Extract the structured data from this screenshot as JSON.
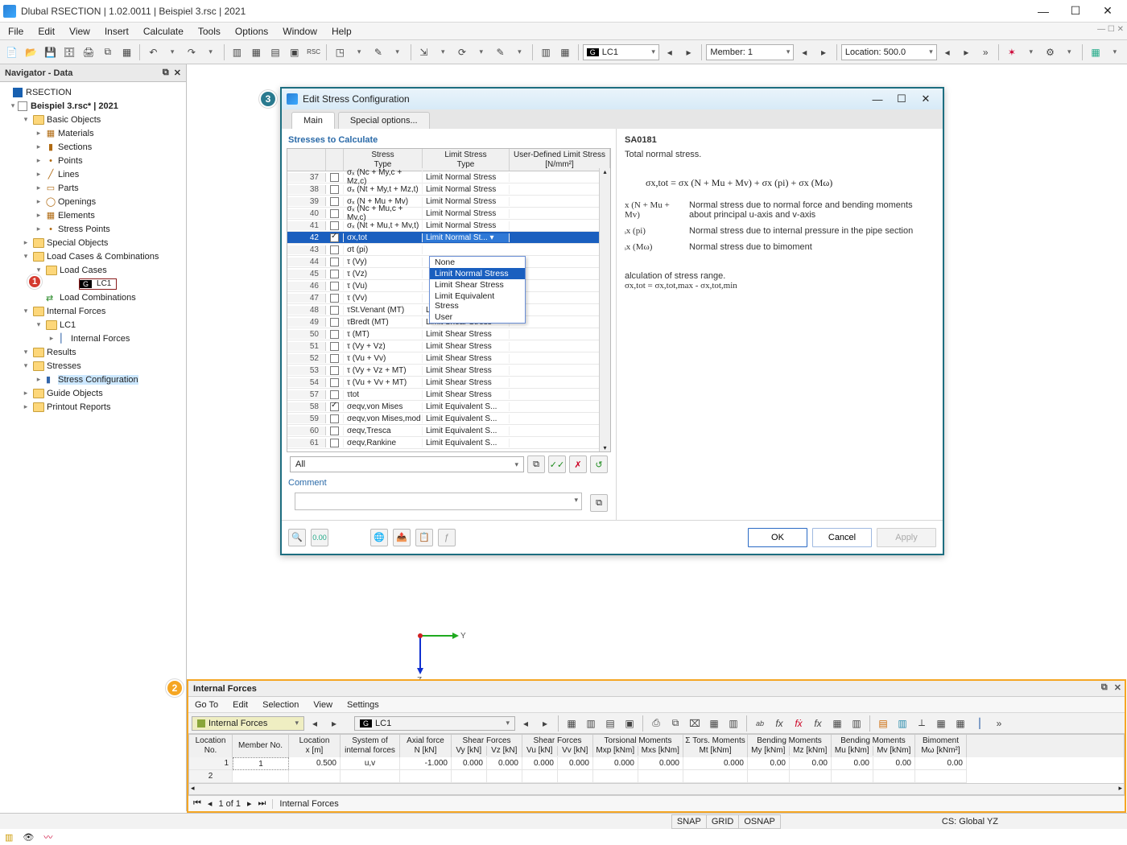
{
  "title": "Dlubal RSECTION | 1.02.0011 | Beispiel 3.rsc | 2021",
  "menu": [
    "File",
    "Edit",
    "View",
    "Insert",
    "Calculate",
    "Tools",
    "Options",
    "Window",
    "Help"
  ],
  "toolbar": {
    "lc_combo": "LC1",
    "member_combo": "Member: 1",
    "location_combo": "Location: 500.0"
  },
  "navigator": {
    "title": "Navigator - Data",
    "root": "RSECTION",
    "file": "Beispiel 3.rsc* | 2021",
    "basic": "Basic Objects",
    "basic_children": [
      "Materials",
      "Sections",
      "Points",
      "Lines",
      "Parts",
      "Openings",
      "Elements",
      "Stress Points"
    ],
    "special": "Special Objects",
    "lcc": "Load Cases & Combinations",
    "load_cases": "Load Cases",
    "lc1": "LC1",
    "load_comb": "Load Combinations",
    "internal_forces": "Internal Forces",
    "if_lc1": "LC1",
    "if_child": "Internal Forces",
    "results": "Results",
    "stresses": "Stresses",
    "stress_conf": "Stress Configuration",
    "guide": "Guide Objects",
    "printout": "Printout Reports"
  },
  "dialog": {
    "title": "Edit Stress Configuration",
    "tabs": [
      "Main",
      "Special options..."
    ],
    "section": "Stresses to Calculate",
    "head": {
      "stress": "Stress\nType",
      "limit": "Limit Stress\nType",
      "user": "User-Defined Limit Stress\n[N/mm²]"
    },
    "rows": [
      {
        "n": 37,
        "chk": false,
        "s": "σₓ (Nc + My,c + Mz,c)",
        "l": "Limit Normal Stress"
      },
      {
        "n": 38,
        "chk": false,
        "s": "σₓ (Nt + My,t + Mz,t)",
        "l": "Limit Normal Stress"
      },
      {
        "n": 39,
        "chk": false,
        "s": "σₓ (N + Mu + Mv)",
        "l": "Limit Normal Stress"
      },
      {
        "n": 40,
        "chk": false,
        "s": "σₓ (Nc + Mu,c + Mv,c)",
        "l": "Limit Normal Stress"
      },
      {
        "n": 41,
        "chk": false,
        "s": "σₓ (Nt + Mu,t + Mv,t)",
        "l": "Limit Normal Stress"
      },
      {
        "n": 42,
        "chk": true,
        "s": "σx,tot",
        "l": "Limit Normal St...  ▾",
        "sel": true
      },
      {
        "n": 43,
        "chk": false,
        "s": "σt (pi)",
        "l": ""
      },
      {
        "n": 44,
        "chk": false,
        "s": "τ (Vy)",
        "l": ""
      },
      {
        "n": 45,
        "chk": false,
        "s": "τ (Vz)",
        "l": ""
      },
      {
        "n": 46,
        "chk": false,
        "s": "τ (Vu)",
        "l": ""
      },
      {
        "n": 47,
        "chk": false,
        "s": "τ (Vv)",
        "l": ""
      },
      {
        "n": 48,
        "chk": false,
        "s": "τSt.Venant (MT)",
        "l": "Limit Shear Stress"
      },
      {
        "n": 49,
        "chk": false,
        "s": "τBredt (MT)",
        "l": "Limit Shear Stress"
      },
      {
        "n": 50,
        "chk": false,
        "s": "τ (MT)",
        "l": "Limit Shear Stress"
      },
      {
        "n": 51,
        "chk": false,
        "s": "τ (Vy + Vz)",
        "l": "Limit Shear Stress"
      },
      {
        "n": 52,
        "chk": false,
        "s": "τ (Vu + Vv)",
        "l": "Limit Shear Stress"
      },
      {
        "n": 53,
        "chk": false,
        "s": "τ (Vy + Vz + MT)",
        "l": "Limit Shear Stress"
      },
      {
        "n": 54,
        "chk": false,
        "s": "τ (Vu + Vv + MT)",
        "l": "Limit Shear Stress"
      },
      {
        "n": 55,
        "chk": false,
        "s": "τtot",
        "l": "Limit Shear Stress"
      },
      {
        "n": 56,
        "chk": true,
        "s": "σeqv,von Mises",
        "l": "Limit Equivalent S..."
      },
      {
        "n": 57,
        "chk": false,
        "s": "σeqv,von Mises,mod",
        "l": "Limit Equivalent S..."
      },
      {
        "n": 58,
        "chk": false,
        "s": "σeqv,Tresca",
        "l": "Limit Equivalent S..."
      },
      {
        "n": 59,
        "chk": false,
        "s": "σeqv,Rankine",
        "l": "Limit Equivalent S..."
      }
    ],
    "row_rename": {
      "55": 57,
      "56": 58,
      "57": 59,
      "58": 60,
      "59": 61
    },
    "dropdown": [
      "None",
      "Limit Normal Stress",
      "Limit Shear Stress",
      "Limit Equivalent Stress",
      "User"
    ],
    "dropdown_sel": 1,
    "filter": "All",
    "comment": "Comment",
    "right": {
      "code": "SA0181",
      "desc": "Total normal stress.",
      "formula": "σx,tot = σx (N + Mu + Mv) + σx (pi) + σx (Mω)",
      "defs": [
        {
          "sym": "x (N + Mu + Mv)",
          "txt": "Normal stress due to normal force and bending moments about principal u-axis and v-axis"
        },
        {
          "sym": "ᵢx (pi)",
          "txt": "Normal stress due to internal pressure in the pipe section"
        },
        {
          "sym": "ᵢx (Mω)",
          "txt": "Normal stress due to bimoment"
        }
      ],
      "range1": "alculation of stress range.",
      "range2": "σx,tot = σx,tot,max - σx,tot,min"
    },
    "buttons": {
      "ok": "OK",
      "cancel": "Cancel",
      "apply": "Apply"
    }
  },
  "bottom": {
    "title": "Internal Forces",
    "menu": [
      "Go To",
      "Edit",
      "Selection",
      "View",
      "Settings"
    ],
    "combo1": "Internal Forces",
    "combo2": "LC1",
    "columns_top": [
      "Location\nNo.",
      "Member No.",
      "Location\nx [m]",
      "System of\ninternal forces",
      "Axial force\nN [kN]",
      "Shear Forces",
      "Shear Forces",
      "Torsional Moments",
      "Σ Tors. Moments\nMt [kNm]",
      "Bending Moments",
      "Bending Moments",
      "Bimoment\nMω [kNm²]"
    ],
    "columns_sub": {
      "5": [
        "Vy [kN]",
        "Vz [kN]"
      ],
      "6": [
        "Vu [kN]",
        "Vv [kN]"
      ],
      "7": [
        "Mxp [kNm]",
        "Mxs [kNm]"
      ],
      "9": [
        "My [kNm]",
        "Mz [kNm]"
      ],
      "10": [
        "Mu [kNm]",
        "Mv [kNm]"
      ]
    },
    "row": {
      "no": "1",
      "member": "1",
      "x": "0.500",
      "sys": "u,v",
      "N": "-1.000",
      "Vy": "0.000",
      "Vz": "0.000",
      "Vu": "0.000",
      "Vv": "0.000",
      "Mxp": "0.000",
      "Mxs": "0.000",
      "Mt": "0.000",
      "My": "0.00",
      "Mz": "0.00",
      "Mu": "0.00",
      "Mv": "0.00",
      "Mw": "0.00"
    },
    "nav": "1 of 1",
    "nav_label": "Internal Forces"
  },
  "status": {
    "snap": "SNAP",
    "grid": "GRID",
    "osnap": "OSNAP",
    "cs": "CS: Global YZ"
  }
}
